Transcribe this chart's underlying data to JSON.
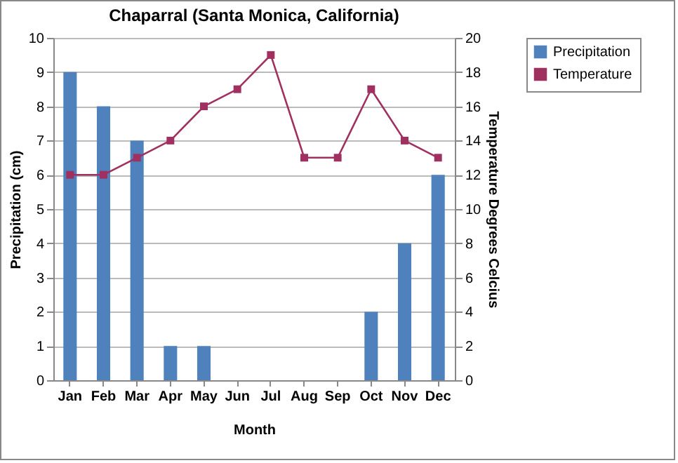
{
  "chart_data": {
    "type": "bar",
    "title": "Chaparral (Santa Monica, California)",
    "xlabel": "Month",
    "ylabel": "Precipitation (cm)",
    "y2label": "Temperature Degrees Celcius",
    "categories": [
      "Jan",
      "Feb",
      "Mar",
      "Apr",
      "May",
      "Jun",
      "Jul",
      "Aug",
      "Sep",
      "Oct",
      "Nov",
      "Dec"
    ],
    "series": [
      {
        "name": "Precipitation",
        "color": "#4f81bd",
        "values": [
          9,
          8,
          7,
          1,
          1,
          0,
          0,
          0,
          0,
          2,
          4,
          6
        ]
      },
      {
        "name": "Temperature",
        "type": "line",
        "axis": "y2",
        "color": "#a0305f",
        "values": [
          12,
          12,
          13,
          14,
          16,
          17,
          19,
          13,
          13,
          17,
          14,
          13
        ]
      }
    ],
    "ylim": [
      0,
      10
    ],
    "yticks": [
      0,
      1,
      2,
      3,
      4,
      5,
      6,
      7,
      8,
      9,
      10
    ],
    "y2lim": [
      0,
      20
    ],
    "y2ticks": [
      0,
      2,
      4,
      6,
      8,
      10,
      12,
      14,
      16,
      18,
      20
    ],
    "grid": "y",
    "legend": "right",
    "marker": "square"
  }
}
